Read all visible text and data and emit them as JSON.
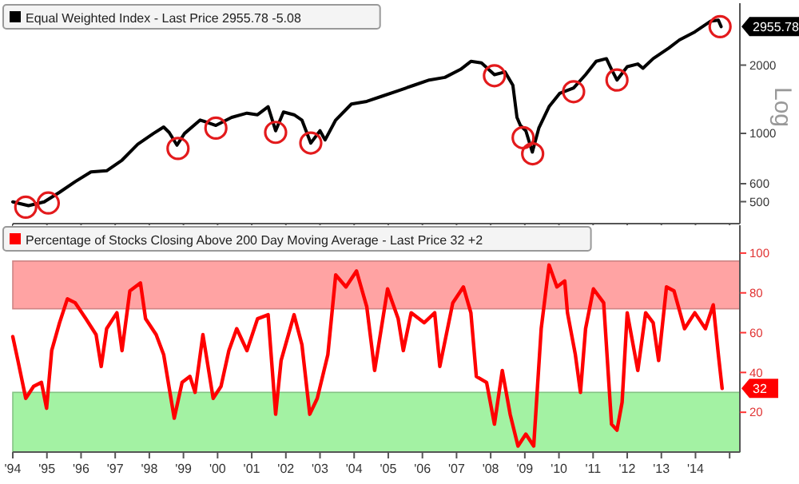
{
  "chart_data": [
    {
      "type": "line",
      "ylabel": "Log",
      "log": true,
      "legend": "top left",
      "tick_labels": "y",
      "xlim": [
        1994,
        2015.3
      ],
      "ylim": [
        400,
        3750
      ],
      "yticks": [
        500,
        600,
        1000,
        2000
      ],
      "series": [
        {
          "name": "Equal Weighted Index - Last Price 2955.78 -5.08",
          "color": "#000000",
          "x": [
            1994.0,
            1994.46,
            1994.92,
            1995.37,
            1995.83,
            1996.29,
            1996.75,
            1997.2,
            1997.66,
            1998.12,
            1998.42,
            1998.58,
            1998.81,
            1999.03,
            1999.49,
            1999.95,
            2000.41,
            2000.86,
            2001.17,
            2001.48,
            2001.7,
            2001.93,
            2002.24,
            2002.47,
            2002.73,
            2003.0,
            2003.15,
            2003.46,
            2003.92,
            2004.37,
            2004.83,
            2005.29,
            2005.75,
            2006.2,
            2006.66,
            2007.12,
            2007.42,
            2007.73,
            2008.11,
            2008.42,
            2008.65,
            2008.77,
            2008.87,
            2009.03,
            2009.22,
            2009.41,
            2009.71,
            2010.02,
            2010.43,
            2010.78,
            2011.09,
            2011.39,
            2011.54,
            2011.7,
            2012.0,
            2012.31,
            2012.46,
            2012.76,
            2013.22,
            2013.53,
            2013.98,
            2014.44,
            2014.67,
            2014.75
          ],
          "values": [
            499,
            480,
            499,
            550,
            613,
            676,
            684,
            762,
            896,
            999,
            1067,
            1010,
            887,
            999,
            1145,
            1084,
            1176,
            1228,
            1208,
            1311,
            1027,
            1242,
            1208,
            1145,
            906,
            1027,
            936,
            1145,
            1347,
            1384,
            1461,
            1542,
            1630,
            1719,
            1766,
            1916,
            2078,
            2045,
            1815,
            1865,
            1630,
            1176,
            1084,
            1027,
            827,
            1055,
            1311,
            1501,
            1585,
            1815,
            2078,
            2136,
            1916,
            1719,
            1969,
            2023,
            1937,
            2136,
            2380,
            2582,
            2802,
            3122,
            3156,
            2956
          ]
        },
        {
          "type": "scatter",
          "marker": "circle",
          "color": "#e31a1c",
          "x": [
            1994.38,
            1995.04,
            1998.84,
            1999.95,
            2001.7,
            2002.73,
            2008.11,
            2008.95,
            2009.23,
            2010.43,
            2011.7,
            2014.72
          ],
          "values": [
            473,
            493,
            858,
            1055,
            1010,
            907,
            1796,
            957,
            813,
            1527,
            1719,
            2956
          ]
        }
      ],
      "xticks": [
        1994,
        1995,
        1996,
        1997,
        1998,
        1999,
        2000,
        2001,
        2002,
        2003,
        2004,
        2005,
        2006,
        2007,
        2008,
        2009,
        2010,
        2011,
        2012,
        2013,
        2014,
        2015
      ],
      "annotations": [
        "2955.78"
      ]
    },
    {
      "type": "line",
      "legend": "top left",
      "xlim": [
        1994,
        2015.3
      ],
      "ylim": [
        0,
        114
      ],
      "yticks": [
        20,
        40,
        60,
        80,
        100
      ],
      "xticks": [
        {
          "value": 1994,
          "label": "'94"
        },
        {
          "value": 1995,
          "label": "'95"
        },
        {
          "value": 1996,
          "label": "'96"
        },
        {
          "value": 1997,
          "label": "'97"
        },
        {
          "value": 1998,
          "label": "'98"
        },
        {
          "value": 1999,
          "label": "'99"
        },
        {
          "value": 2000,
          "label": "'00"
        },
        {
          "value": 2001,
          "label": "'01"
        },
        {
          "value": 2002,
          "label": "'02"
        },
        {
          "value": 2003,
          "label": "'03"
        },
        {
          "value": 2004,
          "label": "'04"
        },
        {
          "value": 2005,
          "label": "'05"
        },
        {
          "value": 2006,
          "label": "'06"
        },
        {
          "value": 2007,
          "label": "'07"
        },
        {
          "value": 2008,
          "label": "'08"
        },
        {
          "value": 2009,
          "label": "'09"
        },
        {
          "value": 2010,
          "label": "'10"
        },
        {
          "value": 2011,
          "label": "'11"
        },
        {
          "value": 2012,
          "label": "'12"
        },
        {
          "value": 2013,
          "label": "'13"
        },
        {
          "value": 2014,
          "label": "'14"
        },
        {
          "value": 2015,
          "label": null
        }
      ],
      "bands": [
        {
          "axis": "y",
          "from": 72,
          "to": 96,
          "color": "#ffa3a3"
        },
        {
          "axis": "y",
          "from": 0,
          "to": 30,
          "color": "#a3f2a3"
        }
      ],
      "series": [
        {
          "name": "Percentage of Stocks Closing Above 200 Day Moving Average - Last Price 32 +2",
          "color": "#ff0000",
          "x": [
            1994.0,
            1994.15,
            1994.38,
            1994.61,
            1994.84,
            1994.99,
            1995.14,
            1995.37,
            1995.6,
            1995.83,
            1996.14,
            1996.44,
            1996.59,
            1996.75,
            1997.05,
            1997.2,
            1997.43,
            1997.74,
            1997.89,
            1998.2,
            1998.42,
            1998.73,
            1998.96,
            1999.19,
            1999.34,
            1999.57,
            1999.87,
            2000.1,
            2000.33,
            2000.56,
            2000.86,
            2001.17,
            2001.48,
            2001.7,
            2001.86,
            2002.24,
            2002.47,
            2002.7,
            2002.92,
            2003.23,
            2003.46,
            2003.76,
            2004.07,
            2004.37,
            2004.53,
            2004.6,
            2004.98,
            2005.29,
            2005.44,
            2005.67,
            2006.05,
            2006.36,
            2006.51,
            2006.89,
            2007.2,
            2007.42,
            2007.58,
            2007.88,
            2008.11,
            2008.34,
            2008.57,
            2008.8,
            2009.03,
            2009.26,
            2009.48,
            2009.71,
            2009.94,
            2010.17,
            2010.25,
            2010.48,
            2010.63,
            2010.78,
            2011.01,
            2011.31,
            2011.54,
            2011.7,
            2011.85,
            2012.0,
            2012.31,
            2012.54,
            2012.76,
            2012.92,
            2013.15,
            2013.37,
            2013.68,
            2013.98,
            2014.29,
            2014.52,
            2014.67,
            2014.78
          ],
          "values": [
            58,
            46,
            27,
            33,
            35,
            22,
            51,
            65,
            77,
            75,
            67,
            59,
            43,
            62,
            70,
            51,
            81,
            85,
            67,
            59,
            49,
            17,
            35,
            38,
            30,
            59,
            27,
            33,
            51,
            62,
            51,
            67,
            69,
            19,
            46,
            69,
            54,
            19,
            27,
            49,
            89,
            83,
            91,
            73,
            51,
            41,
            82,
            67,
            51,
            70,
            65,
            70,
            43,
            75,
            83,
            70,
            38,
            35,
            14,
            41,
            19,
            3,
            9,
            3,
            62,
            94,
            83,
            86,
            70,
            49,
            30,
            62,
            82,
            75,
            14,
            11,
            25,
            70,
            41,
            70,
            65,
            46,
            83,
            81,
            62,
            70,
            62,
            74,
            49,
            32
          ]
        }
      ],
      "annotations": [
        "32"
      ]
    }
  ]
}
